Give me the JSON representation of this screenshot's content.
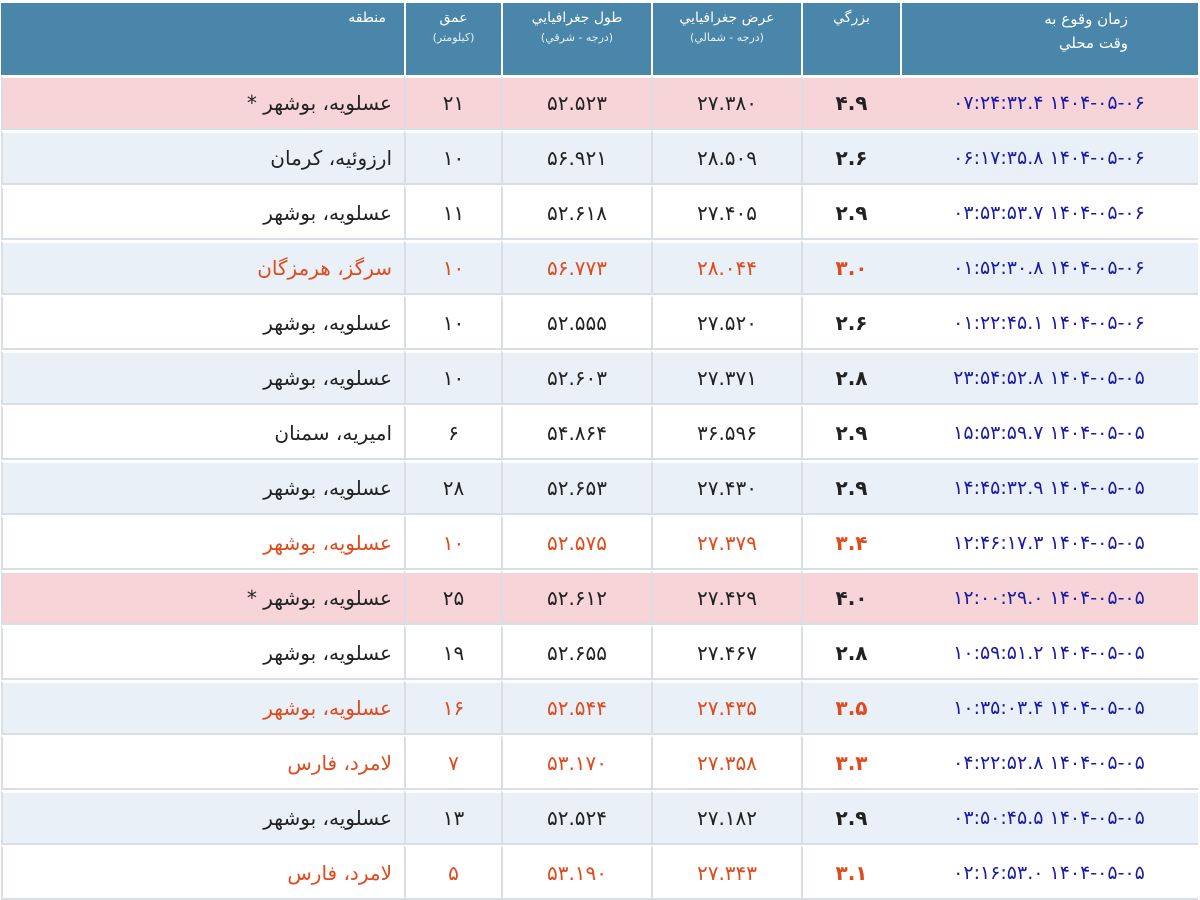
{
  "headers": {
    "time_line1": "زمان وقوع به",
    "time_line2": "وقت محلي",
    "magnitude": "بزرگي",
    "latitude": "عرض جغرافيايي",
    "latitude_unit": "(درجه - شمالي)",
    "longitude": "طول جغرافيايي",
    "longitude_unit": "(درجه - شرقي)",
    "depth": "عمق",
    "depth_unit": "(كيلومتر)",
    "region": "منطقه"
  },
  "colors": {
    "header_bg": "#4a86aa",
    "alt_row_bg": "#e9f0f8",
    "significant_row_bg": "#f7d4d8",
    "highlight_text": "#e04a1c",
    "time_text": "#1a1aa6"
  },
  "rows": [
    {
      "time": "۱۴۰۴-۰۵-۰۶ ۰۷:۲۴:۳۲.۴",
      "magnitude": "۴.۹",
      "latitude": "۲۷.۳۸۰",
      "longitude": "۵۲.۵۲۳",
      "depth": "۲۱",
      "region": "عسلويه، بوشهر *",
      "style": "big"
    },
    {
      "time": "۱۴۰۴-۰۵-۰۶ ۰۶:۱۷:۳۵.۸",
      "magnitude": "۲.۶",
      "latitude": "۲۸.۵۰۹",
      "longitude": "۵۶.۹۲۱",
      "depth": "۱۰",
      "region": "ارزوئيه، كرمان",
      "style": "alt"
    },
    {
      "time": "۱۴۰۴-۰۵-۰۶ ۰۳:۵۳:۵۳.۷",
      "magnitude": "۲.۹",
      "latitude": "۲۷.۴۰۵",
      "longitude": "۵۲.۶۱۸",
      "depth": "۱۱",
      "region": "عسلويه، بوشهر",
      "style": "plain"
    },
    {
      "time": "۱۴۰۴-۰۵-۰۶ ۰۱:۵۲:۳۰.۸",
      "magnitude": "۳.۰",
      "latitude": "۲۸.۰۴۴",
      "longitude": "۵۶.۷۷۳",
      "depth": "۱۰",
      "region": "سرگز، هرمزگان",
      "style": "alt hl"
    },
    {
      "time": "۱۴۰۴-۰۵-۰۶ ۰۱:۲۲:۴۵.۱",
      "magnitude": "۲.۶",
      "latitude": "۲۷.۵۲۰",
      "longitude": "۵۲.۵۵۵",
      "depth": "۱۰",
      "region": "عسلويه، بوشهر",
      "style": "plain"
    },
    {
      "time": "۱۴۰۴-۰۵-۰۵ ۲۳:۵۴:۵۲.۸",
      "magnitude": "۲.۸",
      "latitude": "۲۷.۳۷۱",
      "longitude": "۵۲.۶۰۳",
      "depth": "۱۰",
      "region": "عسلويه، بوشهر",
      "style": "alt"
    },
    {
      "time": "۱۴۰۴-۰۵-۰۵ ۱۵:۵۳:۵۹.۷",
      "magnitude": "۲.۹",
      "latitude": "۳۶.۵۹۶",
      "longitude": "۵۴.۸۶۴",
      "depth": "۶",
      "region": "اميريه، سمنان",
      "style": "plain"
    },
    {
      "time": "۱۴۰۴-۰۵-۰۵ ۱۴:۴۵:۳۲.۹",
      "magnitude": "۲.۹",
      "latitude": "۲۷.۴۳۰",
      "longitude": "۵۲.۶۵۳",
      "depth": "۲۸",
      "region": "عسلويه، بوشهر",
      "style": "alt"
    },
    {
      "time": "۱۴۰۴-۰۵-۰۵ ۱۲:۴۶:۱۷.۳",
      "magnitude": "۳.۴",
      "latitude": "۲۷.۳۷۹",
      "longitude": "۵۲.۵۷۵",
      "depth": "۱۰",
      "region": "عسلويه، بوشهر",
      "style": "plain hl"
    },
    {
      "time": "۱۴۰۴-۰۵-۰۵ ۱۲:۰۰:۲۹.۰",
      "magnitude": "۴.۰",
      "latitude": "۲۷.۴۲۹",
      "longitude": "۵۲.۶۱۲",
      "depth": "۲۵",
      "region": "عسلويه، بوشهر *",
      "style": "big"
    },
    {
      "time": "۱۴۰۴-۰۵-۰۵ ۱۰:۵۹:۵۱.۲",
      "magnitude": "۲.۸",
      "latitude": "۲۷.۴۶۷",
      "longitude": "۵۲.۶۵۵",
      "depth": "۱۹",
      "region": "عسلويه، بوشهر",
      "style": "plain"
    },
    {
      "time": "۱۴۰۴-۰۵-۰۵ ۱۰:۳۵:۰۳.۴",
      "magnitude": "۳.۵",
      "latitude": "۲۷.۴۳۵",
      "longitude": "۵۲.۵۴۴",
      "depth": "۱۶",
      "region": "عسلويه، بوشهر",
      "style": "alt hl"
    },
    {
      "time": "۱۴۰۴-۰۵-۰۵ ۰۴:۲۲:۵۲.۸",
      "magnitude": "۳.۳",
      "latitude": "۲۷.۳۵۸",
      "longitude": "۵۳.۱۷۰",
      "depth": "۷",
      "region": "لامرد، فارس",
      "style": "plain hl"
    },
    {
      "time": "۱۴۰۴-۰۵-۰۵ ۰۳:۵۰:۴۵.۵",
      "magnitude": "۲.۹",
      "latitude": "۲۷.۱۸۲",
      "longitude": "۵۲.۵۲۴",
      "depth": "۱۳",
      "region": "عسلويه، بوشهر",
      "style": "alt"
    },
    {
      "time": "۱۴۰۴-۰۵-۰۵ ۰۲:۱۶:۵۳.۰",
      "magnitude": "۳.۱",
      "latitude": "۲۷.۳۴۳",
      "longitude": "۵۳.۱۹۰",
      "depth": "۵",
      "region": "لامرد، فارس",
      "style": "plain hl"
    }
  ]
}
